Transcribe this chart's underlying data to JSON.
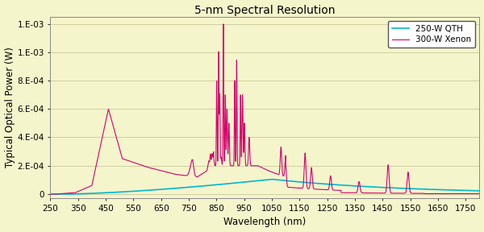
{
  "title": "5-nm Spectral Resolution",
  "xlabel": "Wavelength (nm)",
  "ylabel": "Typical Optical Power (W)",
  "xlim": [
    250,
    1800
  ],
  "ylim": [
    -3e-05,
    0.00125
  ],
  "xticks": [
    250,
    350,
    450,
    550,
    650,
    750,
    850,
    950,
    1050,
    1150,
    1250,
    1350,
    1450,
    1550,
    1650,
    1750
  ],
  "ytick_vals": [
    0,
    0.0002,
    0.0004,
    0.0006,
    0.0008,
    0.001,
    0.0012
  ],
  "ytick_labels": [
    "0",
    "2.E-04",
    "4.E-04",
    "6.E-04",
    "8.E-04",
    "1.E-03",
    "1.E-03"
  ],
  "background_color": "#f5f5cc",
  "qth_color": "#00b8cc",
  "xe_color": "#d4006e",
  "grid_color": "#c8c89a",
  "legend_qth": "250-W QTH",
  "legend_xe": "300-W Xenon",
  "title_fontsize": 10,
  "label_fontsize": 8.5,
  "tick_fontsize": 7.5
}
